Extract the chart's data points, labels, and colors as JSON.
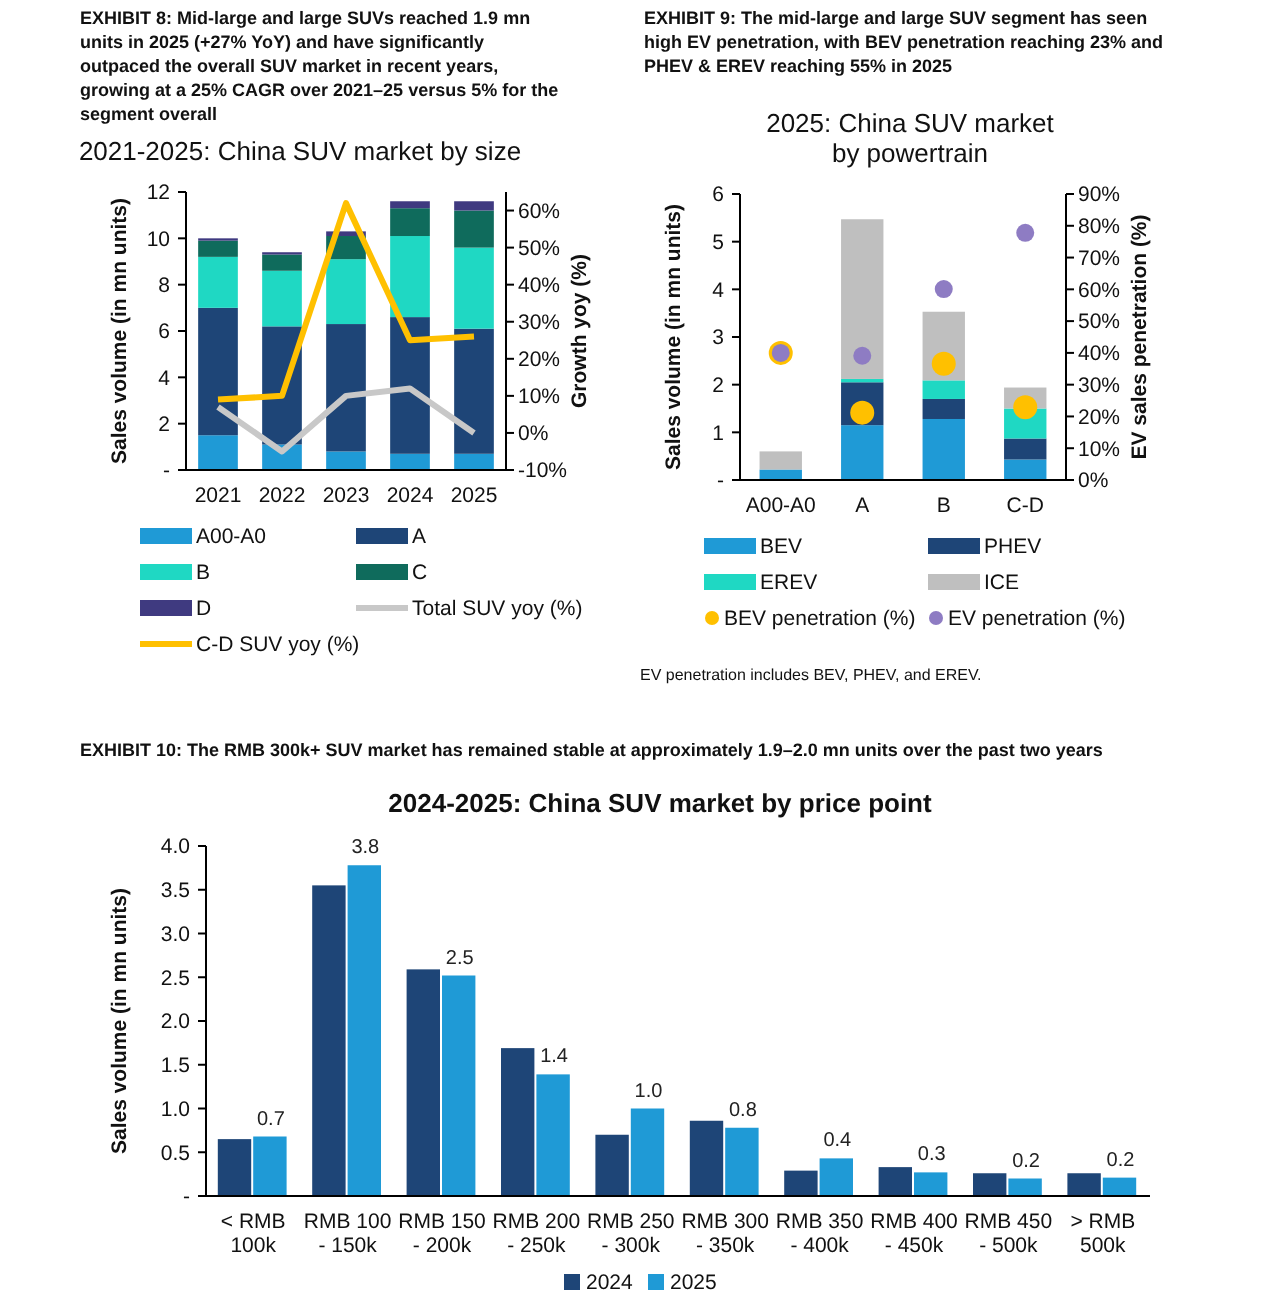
{
  "chart_data": [
    {
      "type": "bar",
      "title": "2021-2025: China SUV market by size",
      "ylabel": "Sales volume (in mn units)",
      "y2label": "Growth yoy (%)",
      "annotations": [
        "EXHIBIT 8: Mid-large and large SUVs reached 1.9 mn units in 2025 (+27% YoY) and have significantly outpaced the overall SUV market in recent years, growing at a 25% CAGR over 2021–25 versus 5% for the segment overall"
      ],
      "stacked": true,
      "legend": "bottom",
      "grid": false,
      "categories": [
        "2021",
        "2022",
        "2023",
        "2024",
        "2025"
      ],
      "ylim": [
        0,
        12
      ],
      "yticks": [
        {
          "value": 0,
          "label": "-"
        },
        2,
        4,
        6,
        8,
        10,
        12
      ],
      "y2lim": [
        -10,
        65
      ],
      "y2ticks": [
        {
          "value": -10,
          "label": "-10%"
        },
        {
          "value": 0,
          "label": "0%"
        },
        {
          "value": 10,
          "label": "10%"
        },
        {
          "value": 20,
          "label": "20%"
        },
        {
          "value": 30,
          "label": "30%"
        },
        {
          "value": 40,
          "label": "40%"
        },
        {
          "value": 50,
          "label": "50%"
        },
        {
          "value": 60,
          "label": "60%"
        }
      ],
      "series": [
        {
          "name": "A00-A0",
          "color": "#1f9ad6",
          "values": [
            1.5,
            1.1,
            0.8,
            0.7,
            0.7
          ]
        },
        {
          "name": "A",
          "color": "#1e4577",
          "values": [
            5.5,
            5.1,
            5.5,
            5.9,
            5.4
          ]
        },
        {
          "name": "B",
          "color": "#1fd8c3",
          "values": [
            2.2,
            2.4,
            2.8,
            3.5,
            3.5
          ]
        },
        {
          "name": "C",
          "color": "#0f6b5c",
          "values": [
            0.7,
            0.7,
            1,
            1.2,
            1.6
          ]
        },
        {
          "name": "D",
          "color": "#3f3a80",
          "values": [
            0.1,
            0.1,
            0.2,
            0.3,
            0.4
          ]
        },
        {
          "name": "Total SUV yoy (%)",
          "type": "line",
          "axis": "y2",
          "color": "#c8c8c8",
          "values": [
            7,
            -5,
            10,
            12,
            0
          ]
        },
        {
          "name": "C-D SUV yoy (%)",
          "type": "line",
          "axis": "y2",
          "color": "#ffc000",
          "values": [
            9,
            10,
            62,
            25,
            26
          ]
        }
      ]
    },
    {
      "type": "bar",
      "title": "2025: China SUV market by powertrain",
      "ylabel": "Sales volume (in mn units)",
      "y2label": "EV sales penetration (%)",
      "annotations": [
        "EXHIBIT 9: The mid-large and large SUV segment has seen high EV penetration, with BEV penetration reaching 23% and PHEV & EREV reaching 55% in 2025",
        "EV penetration includes BEV, PHEV, and EREV."
      ],
      "stacked": true,
      "legend": "bottom",
      "grid": false,
      "categories": [
        "A00-A0",
        "A",
        "B",
        "C-D"
      ],
      "ylim": [
        0,
        6
      ],
      "yticks": [
        {
          "value": 0,
          "label": "-"
        },
        1,
        2,
        3,
        4,
        5,
        6
      ],
      "y2lim": [
        0,
        90
      ],
      "y2ticks": [
        {
          "value": 0,
          "label": "0%"
        },
        {
          "value": 10,
          "label": "10%"
        },
        {
          "value": 20,
          "label": "20%"
        },
        {
          "value": 30,
          "label": "30%"
        },
        {
          "value": 40,
          "label": "40%"
        },
        {
          "value": 50,
          "label": "50%"
        },
        {
          "value": 60,
          "label": "60%"
        },
        {
          "value": 70,
          "label": "70%"
        },
        {
          "value": 80,
          "label": "80%"
        },
        {
          "value": 90,
          "label": "90%"
        }
      ],
      "series": [
        {
          "name": "BEV",
          "color": "#1f9ad6",
          "values": [
            0.22,
            1.15,
            1.28,
            0.43
          ]
        },
        {
          "name": "PHEV",
          "color": "#1e4577",
          "values": [
            0,
            0.9,
            0.42,
            0.44
          ]
        },
        {
          "name": "EREV",
          "color": "#1fd8c3",
          "values": [
            0,
            0.07,
            0.39,
            0.63
          ]
        },
        {
          "name": "ICE",
          "color": "#bfbfbf",
          "values": [
            0.38,
            3.35,
            1.44,
            0.44
          ]
        },
        {
          "name": "BEV penetration (%)",
          "type": "scatter",
          "axis": "y2",
          "marker": "circle",
          "color": "#ffc000",
          "x": [
            "A00-A0",
            "A",
            "B",
            "C-D"
          ],
          "values": [
            40,
            21.2,
            36.6,
            22.9
          ]
        },
        {
          "name": "EV penetration (%)",
          "type": "scatter",
          "axis": "y2",
          "marker": "circle",
          "color": "#8e7cc3",
          "x": [
            "A00-A0",
            "A",
            "B",
            "C-D"
          ],
          "values": [
            40,
            39.1,
            60.1,
            77.8
          ]
        }
      ]
    },
    {
      "type": "bar",
      "title": "2024-2025: China SUV market by price point",
      "ylabel": "Sales volume (in mn units)",
      "annotations": [
        "EXHIBIT 10: The RMB 300k+ SUV market has remained stable at approximately 1.9–2.0 mn units over the past two years"
      ],
      "legend": "bottom",
      "grid": false,
      "categories": [
        "< RMB 100k",
        "RMB 100 - 150k",
        "RMB 150 - 200k",
        "RMB 200 - 250k",
        "RMB 250 - 300k",
        "RMB 300 - 350k",
        "RMB 350 - 400k",
        "RMB 400 - 450k",
        "RMB 450 - 500k",
        "> RMB 500k"
      ],
      "ylim": [
        0,
        4
      ],
      "yticks": [
        {
          "value": 0,
          "label": "-"
        },
        0.5,
        {
          "value": 1,
          "label": "1.0"
        },
        1.5,
        {
          "value": 2,
          "label": "2.0"
        },
        2.5,
        {
          "value": 3,
          "label": "3.0"
        },
        3.5,
        {
          "value": 4,
          "label": "4.0"
        }
      ],
      "series": [
        {
          "name": "2024",
          "color": "#1e4577",
          "values": [
            0.65,
            3.55,
            2.59,
            1.69,
            0.7,
            0.86,
            0.29,
            0.33,
            0.26,
            0.26
          ]
        },
        {
          "name": "2025",
          "color": "#1f9ad6",
          "values": [
            0.68,
            3.78,
            2.52,
            1.39,
            1.0,
            0.78,
            0.43,
            0.27,
            0.2,
            0.21
          ],
          "value_labels": [
            "0.7",
            "3.8",
            "2.5",
            "1.4",
            "1.0",
            "0.8",
            "0.4",
            "0.3",
            "0.2",
            "0.2"
          ]
        }
      ]
    }
  ]
}
